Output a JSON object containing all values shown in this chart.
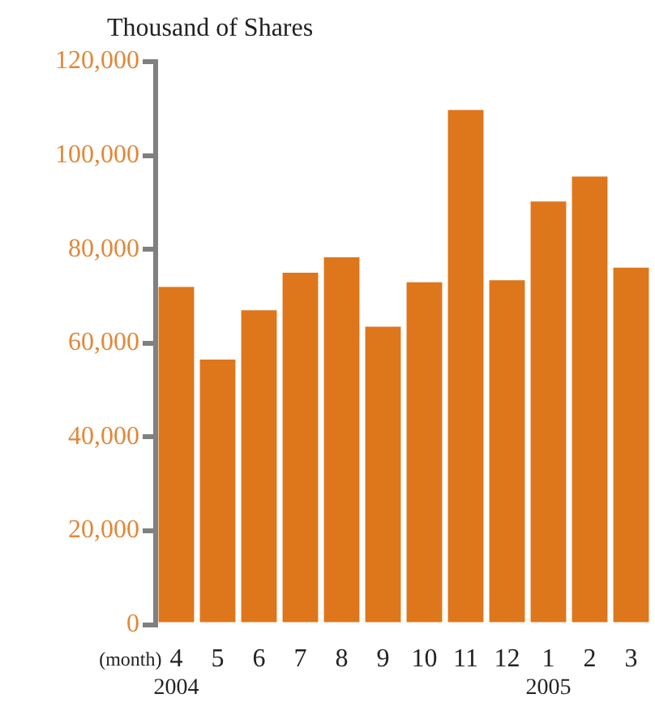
{
  "chart_data": {
    "type": "bar",
    "title": "Thousand of Shares",
    "xlabel": "(month)",
    "categories": [
      "4",
      "5",
      "6",
      "7",
      "8",
      "9",
      "10",
      "11",
      "12",
      "1",
      "2",
      "3"
    ],
    "values": [
      72000,
      56500,
      67000,
      75000,
      78300,
      63500,
      73000,
      109700,
      73400,
      90200,
      95500,
      76100
    ],
    "color": "#de761c",
    "ylim": [
      0,
      120000
    ],
    "yticks": [
      {
        "value": 0,
        "label": "0"
      },
      {
        "value": 20000,
        "label": "20,000"
      },
      {
        "value": 40000,
        "label": "40,000"
      },
      {
        "value": 60000,
        "label": "60,000"
      },
      {
        "value": 80000,
        "label": "80,000"
      },
      {
        "value": 100000,
        "label": "100,000"
      },
      {
        "value": 120000,
        "label": "120,000"
      }
    ],
    "grid": false,
    "legend": false,
    "annotations": [
      "2004",
      "2005"
    ]
  }
}
